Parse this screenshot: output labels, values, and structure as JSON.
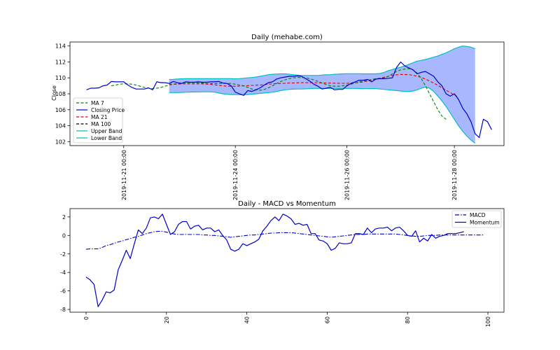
{
  "chart_data": [
    {
      "type": "line",
      "title": "Daily (mehabe.com)",
      "xlabel": "",
      "ylabel": "Close",
      "ylim": [
        101.5,
        114.5
      ],
      "yticks": [
        102,
        104,
        106,
        108,
        110,
        112,
        114
      ],
      "xlim": [
        -4,
        101
      ],
      "xtick_positions": [
        9,
        36,
        63,
        89
      ],
      "xtick_labels": [
        "2019-11-21 00:00",
        "2019-11-24 00:00",
        "2019-11-26 00:00",
        "2019-11-28 00:00"
      ],
      "legend_position": "lower-left",
      "colors": {
        "ma7": "#008000",
        "close": "#0000cc",
        "ma21": "#dd0000",
        "ma100": "#000000",
        "upper": "#00bfbf",
        "lower": "#00bfbf",
        "band_fill": "#a8b8ff"
      },
      "series": [
        {
          "name": "MA 7",
          "style": "dashed",
          "x_start": 6,
          "values": [
            109.0,
            109.1,
            109.2,
            109.25,
            109.25,
            109.2,
            109.1,
            108.95,
            108.8,
            108.7,
            108.65,
            108.7,
            108.8,
            108.95,
            109.1,
            109.2,
            109.3,
            109.35,
            109.4,
            109.4,
            109.4,
            109.38,
            109.35,
            109.3,
            109.28,
            109.28,
            109.3,
            109.3,
            109.3,
            109.3,
            109.2,
            109.1,
            109.0,
            108.8,
            108.6,
            108.5,
            108.45,
            108.55,
            108.75,
            109.0,
            109.3,
            109.55,
            109.75,
            109.9,
            110.0,
            110.05,
            110.05,
            110.0,
            109.9,
            109.75,
            109.55,
            109.35,
            109.15,
            109.0,
            108.95,
            108.95,
            109.0,
            109.1,
            109.2,
            109.35,
            109.5,
            109.6,
            109.7,
            109.8,
            109.9,
            109.95,
            110.0,
            110.2,
            110.5,
            110.8,
            111.0,
            111.1,
            111.15,
            111.0,
            110.6,
            109.9,
            109.0,
            108.0,
            107.0,
            106.0,
            105.2,
            104.8
          ]
        },
        {
          "name": "Closing Price",
          "style": "solid",
          "x_start": 0,
          "values": [
            108.5,
            108.7,
            108.7,
            108.75,
            109.0,
            109.1,
            109.55,
            109.5,
            109.5,
            109.5,
            109.1,
            108.8,
            108.6,
            108.6,
            108.6,
            108.75,
            108.5,
            109.5,
            109.4,
            109.4,
            109.3,
            109.55,
            109.4,
            109.3,
            109.5,
            109.45,
            109.45,
            109.5,
            109.45,
            109.45,
            109.5,
            109.5,
            109.55,
            109.35,
            109.3,
            109.0,
            108.2,
            108.0,
            107.8,
            108.4,
            108.3,
            108.5,
            108.75,
            109.1,
            109.4,
            109.5,
            109.85,
            110.0,
            110.1,
            110.2,
            110.2,
            110.25,
            110.2,
            109.9,
            109.6,
            109.2,
            108.95,
            108.6,
            108.7,
            108.8,
            108.5,
            108.55,
            108.55,
            109.0,
            109.3,
            109.5,
            109.7,
            109.7,
            109.8,
            109.5,
            109.85,
            109.9,
            109.9,
            109.95,
            110.0,
            111.3,
            112.0,
            111.5,
            111.25,
            111.0,
            110.5,
            110.7,
            110.8,
            110.5,
            110.2,
            109.5,
            109.0,
            108.0,
            107.7,
            108.0,
            107.3,
            106.2,
            105.5,
            104.5,
            103.0,
            102.5,
            104.8,
            104.5,
            103.5
          ]
        },
        {
          "name": "MA 21",
          "style": "dashed",
          "x_start": 20,
          "values": [
            109.2,
            109.2,
            109.2,
            109.25,
            109.25,
            109.25,
            109.25,
            109.25,
            109.25,
            109.22,
            109.18,
            109.12,
            109.05,
            109.0,
            108.95,
            108.95,
            108.95,
            108.97,
            109.0,
            109.02,
            109.05,
            109.08,
            109.1,
            109.15,
            109.2,
            109.25,
            109.28,
            109.3,
            109.32,
            109.35,
            109.36,
            109.38,
            109.4,
            109.4,
            109.4,
            109.4,
            109.38,
            109.36,
            109.35,
            109.34,
            109.33,
            109.32,
            109.32,
            109.32,
            109.34,
            109.38,
            109.42,
            109.5,
            109.6,
            109.7,
            109.82,
            109.95,
            110.08,
            110.2,
            110.3,
            110.38,
            110.42,
            110.42,
            110.4,
            110.32,
            110.2,
            110.05,
            109.85,
            109.6,
            109.35,
            109.05,
            108.75,
            108.45,
            108.15,
            107.85,
            107.6
          ]
        },
        {
          "name": "MA 100",
          "style": "dashed",
          "x_start": 0,
          "values": []
        },
        {
          "name": "Upper Band",
          "style": "solid",
          "x_start": 20,
          "values": [
            109.8,
            109.82,
            109.85,
            109.88,
            109.9,
            109.9,
            109.9,
            109.9,
            109.9,
            109.9,
            109.9,
            109.9,
            109.9,
            109.9,
            109.9,
            109.9,
            109.88,
            109.9,
            109.95,
            110.0,
            110.05,
            110.1,
            110.2,
            110.3,
            110.4,
            110.45,
            110.48,
            110.5,
            110.5,
            110.45,
            110.4,
            110.35,
            110.3,
            110.3,
            110.3,
            110.3,
            110.3,
            110.35,
            110.38,
            110.4,
            110.45,
            110.48,
            110.5,
            110.52,
            110.52,
            110.52,
            110.52,
            110.5,
            110.5,
            110.5,
            110.5,
            110.55,
            110.7,
            110.9,
            111.05,
            111.2,
            111.35,
            111.5,
            111.7,
            111.9,
            112.1,
            112.2,
            112.3,
            112.45,
            112.6,
            112.75,
            112.95,
            113.15,
            113.4,
            113.65,
            113.85,
            114.0,
            113.95,
            113.85,
            113.65
          ]
        },
        {
          "name": "Lower Band",
          "style": "solid",
          "x_start": 20,
          "values": [
            108.15,
            108.15,
            108.15,
            108.18,
            108.2,
            108.22,
            108.23,
            108.24,
            108.25,
            108.25,
            108.25,
            108.2,
            108.1,
            108.0,
            107.95,
            107.9,
            107.9,
            107.88,
            107.88,
            107.9,
            107.95,
            108.0,
            108.05,
            108.1,
            108.15,
            108.2,
            108.3,
            108.4,
            108.5,
            108.55,
            108.58,
            108.6,
            108.6,
            108.62,
            108.65,
            108.68,
            108.68,
            108.68,
            108.68,
            108.68,
            108.68,
            108.68,
            108.68,
            108.68,
            108.68,
            108.68,
            108.66,
            108.65,
            108.65,
            108.65,
            108.65,
            108.6,
            108.55,
            108.5,
            108.45,
            108.4,
            108.35,
            108.3,
            108.3,
            108.35,
            108.5,
            108.7,
            108.85,
            108.7,
            108.3,
            107.7,
            107.1,
            106.4,
            105.6,
            104.8,
            104.0,
            103.3,
            102.7,
            102.2,
            101.8
          ]
        }
      ]
    },
    {
      "type": "line",
      "title": "Daily - MACD vs Momentum",
      "xlabel": "",
      "ylabel": "",
      "xlim": [
        -4,
        104
      ],
      "ylim": [
        -8.3,
        2.9
      ],
      "xticks": [
        0,
        20,
        40,
        60,
        80,
        100
      ],
      "yticks": [
        -8,
        -6,
        -4,
        -2,
        0,
        2
      ],
      "legend_position": "top-right",
      "colors": {
        "macd": "#0000cc",
        "momentum": "#0000cc"
      },
      "series": [
        {
          "name": "MACD",
          "style": "dashdot",
          "x_start": 0,
          "values": [
            -1.5,
            -1.45,
            -1.45,
            -1.45,
            -1.3,
            -1.1,
            -1.0,
            -0.85,
            -0.7,
            -0.6,
            -0.45,
            -0.35,
            -0.2,
            -0.1,
            0.05,
            0.2,
            0.3,
            0.4,
            0.45,
            0.45,
            0.35,
            0.25,
            0.15,
            0.1,
            0.1,
            0.1,
            0.1,
            0.1,
            0.1,
            0.05,
            0.05,
            0.0,
            0.0,
            -0.05,
            -0.1,
            -0.15,
            -0.2,
            -0.15,
            -0.1,
            -0.05,
            0.0,
            0.05,
            0.05,
            0.1,
            0.15,
            0.2,
            0.25,
            0.25,
            0.3,
            0.3,
            0.3,
            0.3,
            0.25,
            0.2,
            0.15,
            0.1,
            0.05,
            0.0,
            -0.05,
            -0.1,
            -0.15,
            -0.2,
            -0.15,
            -0.1,
            -0.05,
            0.0,
            0.05,
            0.1,
            0.1,
            0.1,
            0.15,
            0.15,
            0.15,
            0.15,
            0.15,
            0.15,
            0.15,
            0.15,
            0.1,
            0.05,
            0.0,
            -0.05,
            -0.1,
            -0.1,
            -0.05,
            0.0,
            0.0,
            0.0,
            0.05,
            0.05,
            0.05,
            0.05,
            0.05,
            0.05,
            0.05,
            0.05,
            0.05,
            0.05,
            0.05,
            0.05
          ]
        },
        {
          "name": "Momentum",
          "style": "solid",
          "x_start": 0,
          "values": [
            -4.5,
            -4.8,
            -5.3,
            -7.7,
            -7.0,
            -6.1,
            -6.2,
            -5.9,
            -3.7,
            -2.7,
            -1.6,
            -2.5,
            -0.9,
            0.6,
            0.2,
            0.8,
            1.9,
            2.0,
            1.8,
            2.3,
            1.2,
            0.1,
            0.4,
            1.2,
            1.5,
            1.5,
            0.7,
            1.0,
            1.1,
            0.6,
            0.8,
            0.8,
            0.4,
            0.6,
            0.0,
            -0.5,
            -1.5,
            -1.7,
            -1.5,
            -0.9,
            -1.1,
            -0.9,
            -0.7,
            -0.4,
            0.5,
            1.0,
            1.6,
            2.0,
            1.6,
            2.3,
            2.1,
            1.8,
            1.2,
            1.3,
            1.1,
            1.2,
            0.2,
            0.2,
            -0.5,
            -0.6,
            -0.9,
            -1.6,
            -1.4,
            -0.8,
            -0.9,
            -0.9,
            -0.8,
            0.2,
            0.2,
            0.1,
            0.8,
            0.3,
            0.7,
            0.8,
            0.8,
            0.9,
            0.5,
            0.8,
            0.9,
            0.5,
            0.0,
            -0.1,
            0.5,
            -0.7,
            -0.3,
            -0.6,
            0.1,
            -0.3,
            -0.1,
            0.0,
            0.2,
            0.2,
            0.2,
            0.3,
            0.4
          ]
        }
      ]
    }
  ]
}
